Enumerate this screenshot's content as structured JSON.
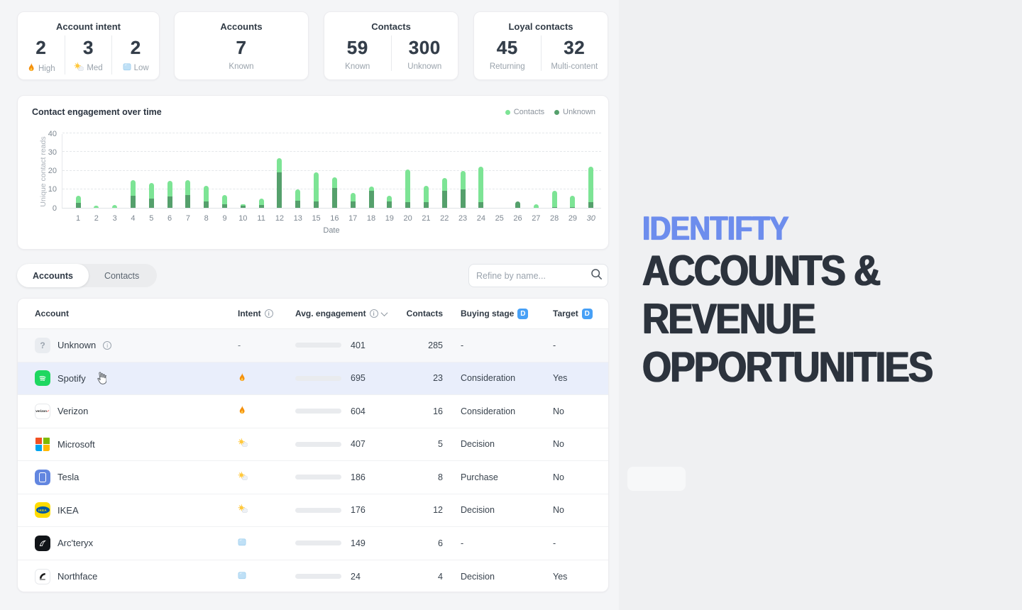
{
  "cards": {
    "account_intent": {
      "title": "Account intent",
      "stats": [
        {
          "value": "2",
          "label": "High",
          "icon": "fire-icon"
        },
        {
          "value": "3",
          "label": "Med",
          "icon": "sun-cloud-icon"
        },
        {
          "value": "2",
          "label": "Low",
          "icon": "ice-icon"
        }
      ]
    },
    "accounts": {
      "title": "Accounts",
      "stats": [
        {
          "value": "7",
          "label": "Known"
        }
      ]
    },
    "contacts": {
      "title": "Contacts",
      "stats": [
        {
          "value": "59",
          "label": "Known"
        },
        {
          "value": "300",
          "label": "Unknown"
        }
      ]
    },
    "loyal": {
      "title": "Loyal contacts",
      "stats": [
        {
          "value": "45",
          "label": "Returning"
        },
        {
          "value": "32",
          "label": "Multi-content"
        }
      ]
    }
  },
  "chart_data": {
    "type": "bar",
    "stacked": true,
    "title": "Contact engagement over time",
    "ylabel": "Unique contact reads",
    "xlabel": "Date",
    "ylim": [
      0,
      40
    ],
    "yticks": [
      0,
      10,
      20,
      30,
      40
    ],
    "grid": "dashed-horizontal",
    "legend_position": "top-right",
    "legend": [
      {
        "label": "Contacts",
        "color": "#7de495"
      },
      {
        "label": "Unknown",
        "color": "#55a06c"
      }
    ],
    "categories": [
      "1",
      "2",
      "3",
      "4",
      "5",
      "6",
      "7",
      "8",
      "9",
      "10",
      "11",
      "12",
      "13",
      "15",
      "16",
      "17",
      "18",
      "19",
      "20",
      "21",
      "22",
      "23",
      "24",
      "25",
      "26",
      "27",
      "28",
      "29",
      "30"
    ],
    "last_label_italic": true,
    "series": [
      {
        "name": "Unknown",
        "color": "#55a06c",
        "values": [
          2.5,
          0,
          0,
          6.5,
          5,
          6,
          7,
          3.5,
          2,
          1,
          1.5,
          19,
          4,
          3.5,
          10.5,
          3.5,
          9,
          3.5,
          3,
          3,
          9,
          10,
          3,
          0,
          3.5,
          0,
          0.5,
          0.5,
          3
        ]
      },
      {
        "name": "Contacts",
        "color": "#7de495",
        "values": [
          4,
          1,
          1.5,
          8.5,
          8.5,
          8.5,
          8,
          8.5,
          5,
          1,
          3.5,
          7.5,
          6,
          15.5,
          6,
          4.5,
          2.5,
          3,
          17.5,
          9,
          7,
          10,
          19,
          0,
          0,
          2,
          8.5,
          6,
          19
        ]
      }
    ]
  },
  "tabs": {
    "accounts": "Accounts",
    "contacts": "Contacts"
  },
  "search": {
    "placeholder": "Refine by name..."
  },
  "table": {
    "dynamic_badge": "D",
    "headers": {
      "account": "Account",
      "intent": "Intent",
      "engagement": "Avg. engagement",
      "contacts": "Contacts",
      "stage": "Buying stage",
      "target": "Target"
    },
    "rows": [
      {
        "name": "Unknown",
        "logo": "unknown-logo",
        "has_info": true,
        "intent_icon": "none",
        "intent_text": "-",
        "engagement": "401",
        "fill": 80,
        "bar_color": "#7ddf92",
        "contacts": "285",
        "stage": "-",
        "target": "-",
        "muted": true
      },
      {
        "name": "Spotify",
        "logo": "spotify-logo",
        "has_info": false,
        "intent_icon": "fire-icon",
        "intent_text": "",
        "engagement": "695",
        "fill": 96,
        "bar_color": "#7ddf92",
        "contacts": "23",
        "stage": "Consideration",
        "target": "Yes",
        "highlight": true,
        "cursor": true
      },
      {
        "name": "Verizon",
        "logo": "verizon-logo",
        "has_info": false,
        "intent_icon": "fire-icon",
        "intent_text": "",
        "engagement": "604",
        "fill": 88,
        "bar_color": "#7ddf92",
        "contacts": "16",
        "stage": "Consideration",
        "target": "No"
      },
      {
        "name": "Microsoft",
        "logo": "microsoft-logo",
        "has_info": false,
        "intent_icon": "sun-cloud-icon",
        "intent_text": "",
        "engagement": "407",
        "fill": 73,
        "bar_color": "#7ddf92",
        "contacts": "5",
        "stage": "Decision",
        "target": "No"
      },
      {
        "name": "Tesla",
        "logo": "tesla-logo",
        "has_info": false,
        "intent_icon": "sun-cloud-icon",
        "intent_text": "",
        "engagement": "186",
        "fill": 42,
        "bar_color": "#f6d44a",
        "contacts": "8",
        "stage": "Purchase",
        "target": "No"
      },
      {
        "name": "IKEA",
        "logo": "ikea-logo",
        "has_info": false,
        "intent_icon": "sun-cloud-icon",
        "intent_text": "",
        "engagement": "176",
        "fill": 39,
        "bar_color": "#f6d44a",
        "contacts": "12",
        "stage": "Decision",
        "target": "No"
      },
      {
        "name": "Arc'teryx",
        "logo": "arcteryx-logo",
        "has_info": false,
        "intent_icon": "ice-icon",
        "intent_text": "",
        "engagement": "149",
        "fill": 34,
        "bar_color": "#f09950",
        "contacts": "6",
        "stage": "-",
        "target": "-"
      },
      {
        "name": "Northface",
        "logo": "northface-logo",
        "has_info": false,
        "intent_icon": "ice-icon",
        "intent_text": "",
        "engagement": "24",
        "fill": 6,
        "bar_color": "#e84747",
        "contacts": "4",
        "stage": "Decision",
        "target": "Yes"
      }
    ]
  },
  "hero": {
    "line1": "IDENTIFTY",
    "line2": "ACCOUNTS &",
    "line3": "REVENUE",
    "line4": "OPPORTUNITIES",
    "accent_color": "#6d8ded",
    "text_color": "#2c333d"
  }
}
